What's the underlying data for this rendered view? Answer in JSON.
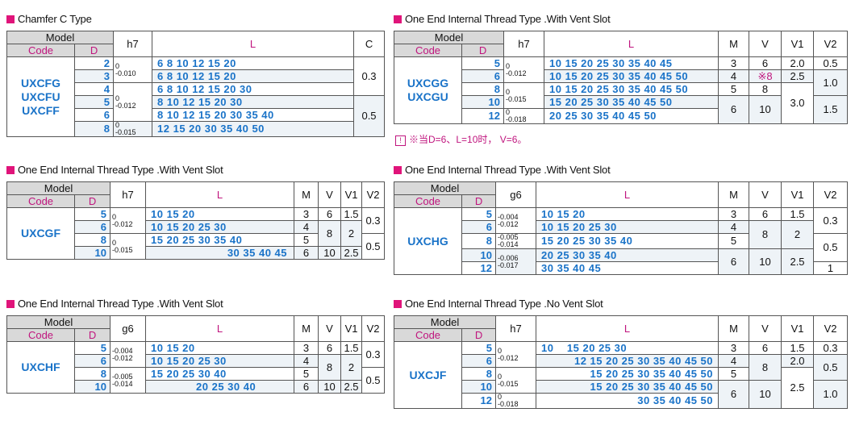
{
  "colors": {
    "accent": "#e0147a",
    "code": "#1a73c8",
    "header_bg": "#d9d9d9"
  },
  "headers": {
    "model": "Model",
    "code": "Code",
    "d": "D",
    "L": "L",
    "M": "M",
    "V": "V",
    "V1": "V1",
    "V2": "V2",
    "C": "C"
  },
  "s1": {
    "title": "Chamfer C Type",
    "tol_header": "h7",
    "codes": [
      "UXCFG",
      "UXCFU",
      "UXCFF"
    ],
    "rows": [
      {
        "d": "2",
        "L": "6 8 10 12 15 20"
      },
      {
        "d": "3",
        "L": "6 8 10 12 15 20"
      },
      {
        "d": "4",
        "L": "6 8 10 12 15 20 30"
      },
      {
        "d": "5",
        "L": "8 10 12 15 20 30"
      },
      {
        "d": "6",
        "L": "8 10 12 15 20 30 35 40"
      },
      {
        "d": "8",
        "L": "12 15 20 30 35 40 50"
      }
    ],
    "tols": [
      {
        "u": "0",
        "l": "-0.010"
      },
      {
        "u": "0",
        "l": "-0.012"
      },
      {
        "u": "0",
        "l": "-0.015"
      }
    ],
    "C": [
      "0.3",
      "0.5"
    ]
  },
  "s2": {
    "title": "One End Internal Thread Type .With Vent Slot",
    "tol_header": "h7",
    "codes": [
      "UXCGG",
      "UXCGU"
    ],
    "rows": [
      {
        "d": "5",
        "L": "10 15 20 25 30 35 40 45"
      },
      {
        "d": "6",
        "L": "10 15 20 25 30 35 40 45 50"
      },
      {
        "d": "8",
        "L": "10 15 20 25 30 35 40 45 50"
      },
      {
        "d": "10",
        "L": "15 20 25 30 35 40 45 50"
      },
      {
        "d": "12",
        "L": "20 25 30 35 40 45 50"
      }
    ],
    "tols": [
      {
        "u": "0",
        "l": "-0.012"
      },
      {
        "u": "0",
        "l": "-0.015"
      },
      {
        "u": "0",
        "l": "-0.018"
      }
    ],
    "M": [
      "3",
      "4",
      "5",
      "6"
    ],
    "V": [
      "6",
      "※8",
      "8",
      "10"
    ],
    "V1": [
      "2.0",
      "2.5",
      "3.0"
    ],
    "V2": [
      "0.5",
      "1.0",
      "1.5"
    ],
    "note": "※当D=6、L=10时， V=6。"
  },
  "s3": {
    "title": "One End Internal Thread Type .With Vent Slot",
    "tol_header": "h7",
    "codes": [
      "UXCGF"
    ],
    "rows": [
      {
        "d": "5",
        "L": "10 15 20"
      },
      {
        "d": "6",
        "L": "10 15 20 25 30"
      },
      {
        "d": "8",
        "L": "15 20 25 30 35 40"
      },
      {
        "d": "10",
        "L": "30 35 40 45"
      }
    ],
    "tols": [
      {
        "u": "0",
        "l": "-0.012"
      },
      {
        "u": "0",
        "l": "-0.015"
      }
    ],
    "M": [
      "3",
      "4",
      "5",
      "6"
    ],
    "V": [
      "6",
      "8",
      "10"
    ],
    "V1": [
      "1.5",
      "2",
      "2.5"
    ],
    "V2": [
      "0.3",
      "0.5"
    ]
  },
  "s4": {
    "title": "One End Internal Thread Type .With Vent Slot",
    "tol_header": "g6",
    "codes": [
      "UXCHG"
    ],
    "rows": [
      {
        "d": "5",
        "L": "10 15 20"
      },
      {
        "d": "6",
        "L": "10 15 20 25 30"
      },
      {
        "d": "8",
        "L": "15 20 25 30 35 40"
      },
      {
        "d": "10",
        "L": "20 25 30 35 40"
      },
      {
        "d": "12",
        "L": "30 35 40 45"
      }
    ],
    "tols": [
      {
        "u": "-0.004",
        "l": "-0.012"
      },
      {
        "u": "-0.005",
        "l": "-0.014"
      },
      {
        "u": "-0.006",
        "l": "-0.017"
      }
    ],
    "M": [
      "3",
      "4",
      "5",
      "6"
    ],
    "V": [
      "6",
      "8",
      "10"
    ],
    "V1": [
      "1.5",
      "2",
      "2.5"
    ],
    "V2": [
      "0.3",
      "0.5",
      "1"
    ]
  },
  "s5": {
    "title": "One End Internal Thread Type .With Vent Slot",
    "tol_header": "g6",
    "codes": [
      "UXCHF"
    ],
    "rows": [
      {
        "d": "5",
        "L": "10 15 20"
      },
      {
        "d": "6",
        "L": "10 15 20 25 30"
      },
      {
        "d": "8",
        "L": "15 20 25 30 40"
      },
      {
        "d": "10",
        "L": "20 25 30 40"
      }
    ],
    "tols": [
      {
        "u": "-0.004",
        "l": "-0.012"
      },
      {
        "u": "-0.005",
        "l": "-0.014"
      }
    ],
    "M": [
      "3",
      "4",
      "5",
      "6"
    ],
    "V": [
      "6",
      "8",
      "10"
    ],
    "V1": [
      "1.5",
      "2",
      "2.5"
    ],
    "V2": [
      "0.3",
      "0.5"
    ]
  },
  "s6": {
    "title": "One End Internal Thread Type .No Vent Slot",
    "tol_header": "h7",
    "codes": [
      "UXCJF"
    ],
    "rows": [
      {
        "d": "5",
        "L": "10    15 20 25 30"
      },
      {
        "d": "6",
        "L": "12 15 20 25 30 35 40 45 50"
      },
      {
        "d": "8",
        "L": "15 20 25 30 35 40 45 50"
      },
      {
        "d": "10",
        "L": "15 20 25 30 35 40 45 50"
      },
      {
        "d": "12",
        "L": "30 35 40 45 50"
      }
    ],
    "tols": [
      {
        "u": "0",
        "l": "-0.012"
      },
      {
        "u": "0",
        "l": "-0.015"
      },
      {
        "u": "0",
        "l": "-0.018"
      }
    ],
    "M": [
      "3",
      "4",
      "5",
      "6"
    ],
    "V": [
      "6",
      "8",
      "10"
    ],
    "V1": [
      "1.5",
      "2.0",
      "2.5"
    ],
    "V2": [
      "0.3",
      "0.5",
      "1.0"
    ]
  }
}
